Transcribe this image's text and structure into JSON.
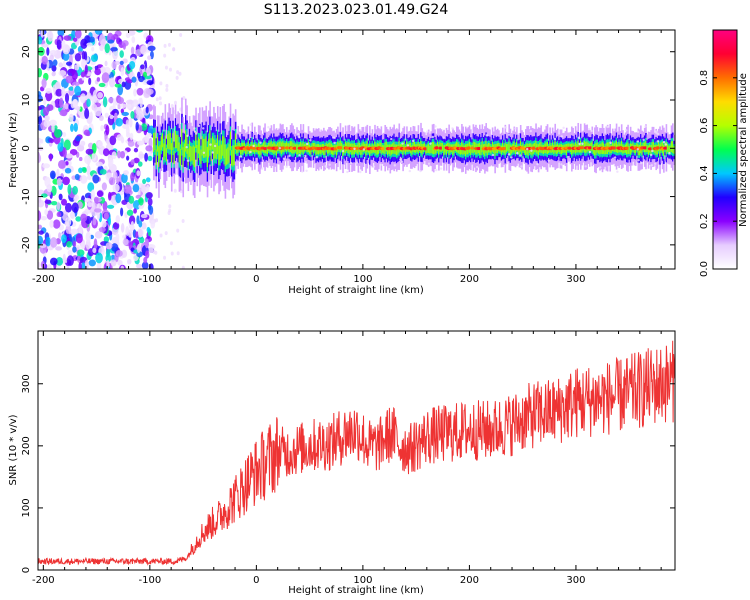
{
  "figure_title": "S113.2023.023.01.49.G24",
  "chart_data": [
    {
      "type": "heatmap",
      "title": "",
      "xlabel": "Height of straight line (km)",
      "ylabel": "Frequency (Hz)",
      "xlim": [
        -205,
        393
      ],
      "ylim": [
        -25,
        24.5
      ],
      "x_ticks": [
        -200,
        -100,
        0,
        100,
        200,
        300
      ],
      "y_ticks": [
        -20,
        -10,
        0,
        10,
        20
      ],
      "grid": false,
      "colorbar": {
        "label": "Normalized spectral amplitude",
        "range": [
          0,
          1
        ],
        "ticks": [
          0.0,
          0.2,
          0.4,
          0.6,
          0.8
        ],
        "tick_labels": [
          "0.0",
          "0.2",
          "0.4",
          "0.6",
          "0.8"
        ],
        "colormap": [
          "#ffffff",
          "#e6ccff",
          "#8a00ff",
          "#2000ff",
          "#00c8ff",
          "#00ff50",
          "#b4ff00",
          "#ffdc00",
          "#ff6e00",
          "#ff0032",
          "#ff0080"
        ]
      },
      "regions": {
        "noise_band": {
          "x_range": [
            -205,
            -97
          ],
          "frequency_range": [
            -25,
            24.5
          ],
          "typical_amplitude": 0.25
        },
        "signal_onset_km": -97,
        "carrier_frequency_hz": 0.0,
        "carrier_peak_amplitude": 1.0
      }
    },
    {
      "type": "line",
      "title": "",
      "xlabel": "Height of straight line (km)",
      "ylabel": "SNR (10 * v/v)",
      "xlim": [
        -205,
        393
      ],
      "ylim": [
        0,
        385
      ],
      "x_ticks": [
        -200,
        -100,
        0,
        100,
        200,
        300
      ],
      "y_ticks": [
        0,
        100,
        200,
        300
      ],
      "grid": false,
      "series": [
        {
          "color": "#ee3333",
          "x": [
            -205,
            -150,
            -100,
            -75,
            -65,
            -55,
            -45,
            -35,
            -20,
            -5,
            10,
            20,
            30,
            50,
            70,
            85,
            95,
            105,
            115,
            122,
            128,
            135,
            145,
            160,
            180,
            200,
            220,
            240,
            260,
            280,
            300,
            320,
            340,
            360,
            380,
            393
          ],
          "values": [
            14,
            14,
            14,
            14,
            20,
            50,
            70,
            85,
            115,
            150,
            175,
            190,
            190,
            200,
            205,
            220,
            225,
            200,
            200,
            215,
            220,
            200,
            195,
            215,
            220,
            225,
            225,
            235,
            250,
            255,
            270,
            275,
            280,
            290,
            300,
            305
          ]
        }
      ]
    }
  ]
}
